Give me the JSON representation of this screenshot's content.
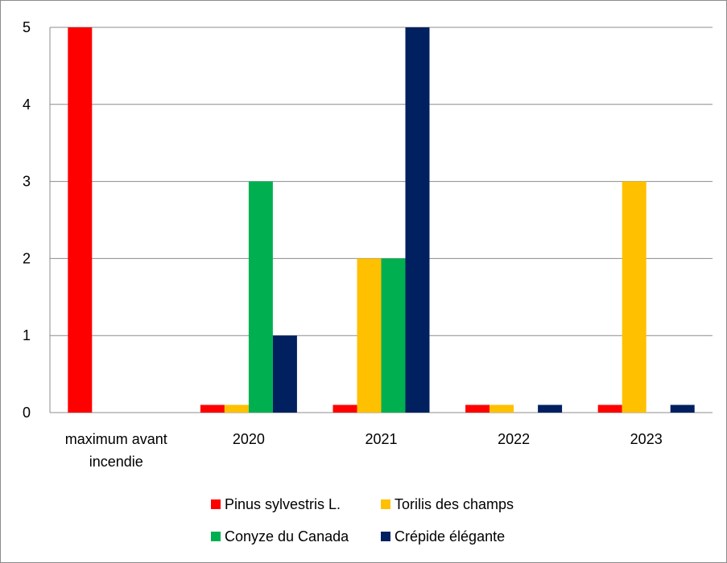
{
  "chart_data": {
    "type": "bar",
    "categories": [
      [
        "maximum avant",
        "incendie"
      ],
      [
        "2020"
      ],
      [
        "2021"
      ],
      [
        "2022"
      ],
      [
        "2023"
      ]
    ],
    "ylim": [
      0,
      5
    ],
    "yticks": [
      "0",
      "1",
      "2",
      "3",
      "4",
      "5"
    ],
    "grid": true,
    "legend_placement": "bottom",
    "series": [
      {
        "name": "Pinus sylvestris L.",
        "color": "#ff0000",
        "values": [
          5,
          0.1,
          0.1,
          0.1,
          0.1
        ]
      },
      {
        "name": "Torilis des champs",
        "color": "#ffc000",
        "values": [
          0,
          0.1,
          2,
          0.1,
          3
        ]
      },
      {
        "name": "Conyze du Canada",
        "color": "#00b050",
        "values": [
          0,
          3,
          2,
          0,
          0
        ]
      },
      {
        "name": "Crépide élégante",
        "color": "#002060",
        "values": [
          0,
          1,
          5,
          0.1,
          0.1
        ]
      }
    ]
  }
}
